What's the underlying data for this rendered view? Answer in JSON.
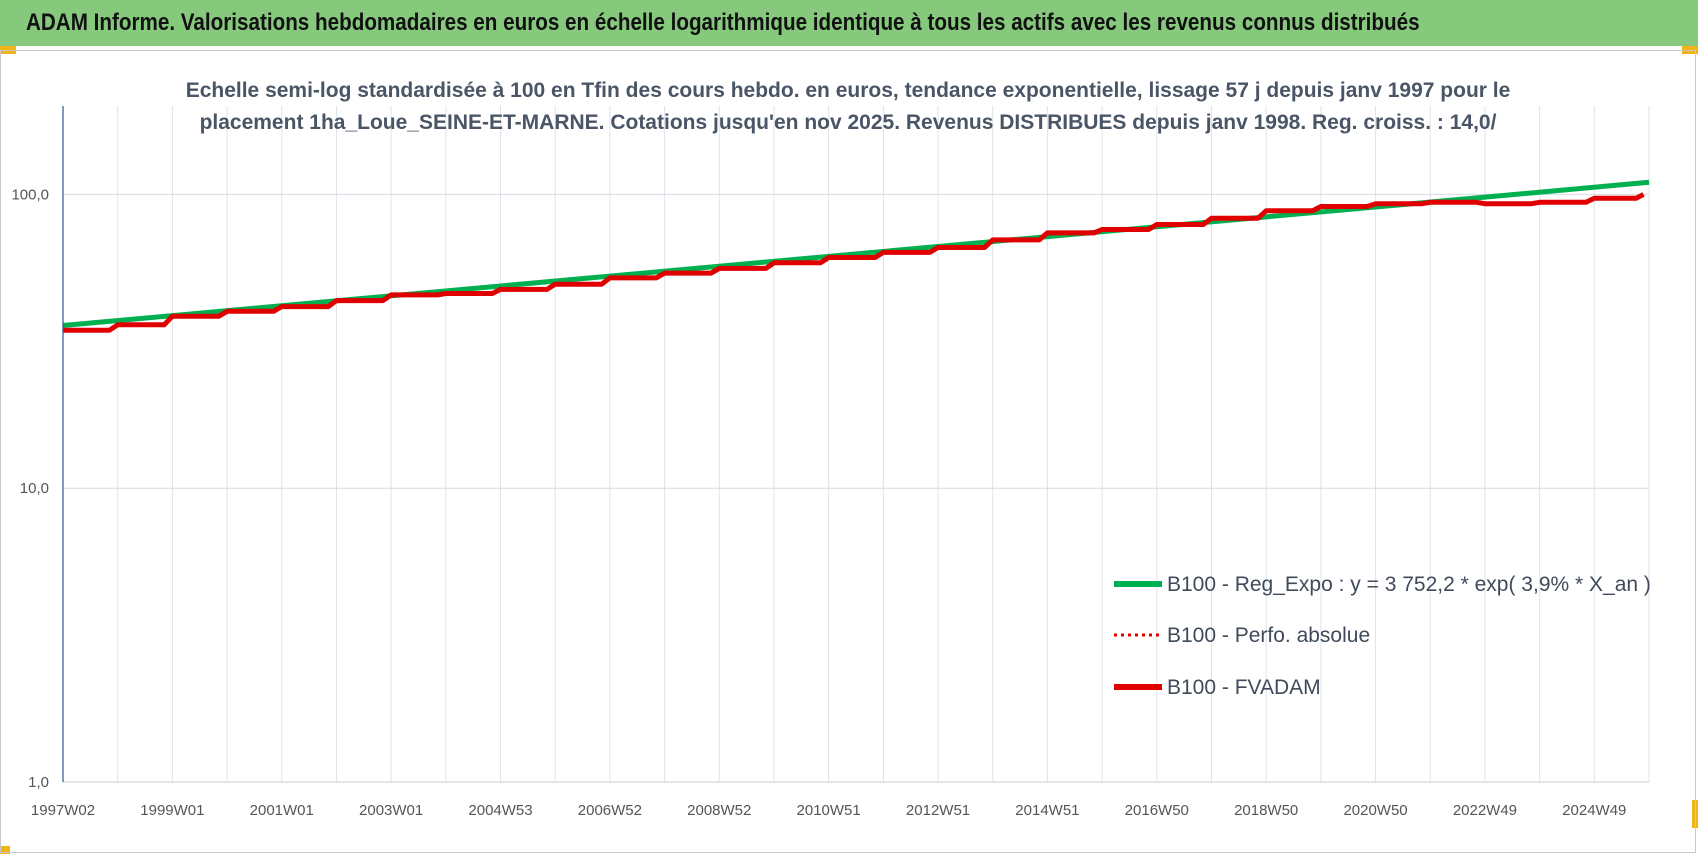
{
  "header": {
    "title": "ADAM Informe. Valorisations hebdomadaires en euros en échelle logarithmique identique à tous les actifs avec les revenus connus distribués"
  },
  "chart_data": {
    "type": "line",
    "subtitle_lines": [
      "Echelle semi-log standardisée à 100 en Tfin des cours hebdo. en euros, tendance exponentielle, lissage 57 j depuis janv 1997 pour le",
      "placement 1ha_Loue_SEINE-ET-MARNE. Cotations jusqu'en nov 2025. Revenus DISTRIBUES depuis janv 1998. Reg. croiss. : 14,0/"
    ],
    "y_scale": "log",
    "ylim": [
      1,
      200
    ],
    "y_ticks": [
      {
        "value": 1,
        "label": "1,0"
      },
      {
        "value": 10,
        "label": "10,0"
      },
      {
        "value": 100,
        "label": "100,0"
      }
    ],
    "x_range": [
      1997.0,
      2026.0
    ],
    "x_ticks": [
      {
        "value": 1997.0,
        "label": "1997W02"
      },
      {
        "value": 1999.0,
        "label": "1999W01"
      },
      {
        "value": 2001.0,
        "label": "2001W01"
      },
      {
        "value": 2003.0,
        "label": "2003W01"
      },
      {
        "value": 2005.0,
        "label": "2004W53"
      },
      {
        "value": 2007.0,
        "label": "2006W52"
      },
      {
        "value": 2009.0,
        "label": "2008W52"
      },
      {
        "value": 2011.0,
        "label": "2010W51"
      },
      {
        "value": 2013.0,
        "label": "2012W51"
      },
      {
        "value": 2015.0,
        "label": "2014W51"
      },
      {
        "value": 2017.0,
        "label": "2016W50"
      },
      {
        "value": 2019.0,
        "label": "2018W50"
      },
      {
        "value": 2021.0,
        "label": "2020W50"
      },
      {
        "value": 2023.0,
        "label": "2022W49"
      },
      {
        "value": 2025.0,
        "label": "2024W49"
      }
    ],
    "grid": true,
    "legend_position": "lower-right",
    "series": [
      {
        "name": "B100 - Reg_Expo : y = 3 752,2 * exp( 3,9% *  X_an )",
        "color": "#00b050",
        "style": "solid",
        "x": [
          1997.0,
          2026.0
        ],
        "y": [
          35.8,
          110.0
        ]
      },
      {
        "name": "B100 - Perfo. absolue",
        "color": "#e00000",
        "style": "dotted",
        "x": [
          1997.0,
          1998.0,
          1999.0,
          2000.0,
          2001.0,
          2002.0,
          2003.0,
          2004.0,
          2005.0,
          2006.0,
          2007.0,
          2008.0,
          2009.0,
          2010.0,
          2011.0,
          2012.0,
          2013.0,
          2014.0,
          2015.0,
          2016.0,
          2017.0,
          2018.0,
          2019.0,
          2020.0,
          2021.0,
          2022.0,
          2023.0,
          2024.0,
          2025.0,
          2025.9
        ],
        "y": [
          34.5,
          36.0,
          38.5,
          40.0,
          41.5,
          43.5,
          45.5,
          46.0,
          47.5,
          49.5,
          52.0,
          54.0,
          56.0,
          58.5,
          61.0,
          63.5,
          66.0,
          70.0,
          74.0,
          76.0,
          79.0,
          83.0,
          88.0,
          91.0,
          93.0,
          94.0,
          93.0,
          94.0,
          97.0,
          100.0
        ]
      },
      {
        "name": "B100 - FVADAM",
        "color": "#e00000",
        "style": "solid",
        "x": [
          1997.0,
          1998.0,
          1999.0,
          2000.0,
          2001.0,
          2002.0,
          2003.0,
          2004.0,
          2005.0,
          2006.0,
          2007.0,
          2008.0,
          2009.0,
          2010.0,
          2011.0,
          2012.0,
          2013.0,
          2014.0,
          2015.0,
          2016.0,
          2017.0,
          2018.0,
          2019.0,
          2020.0,
          2021.0,
          2022.0,
          2023.0,
          2024.0,
          2025.0,
          2025.9
        ],
        "y": [
          34.5,
          36.0,
          38.5,
          40.0,
          41.5,
          43.5,
          45.5,
          46.0,
          47.5,
          49.5,
          52.0,
          54.0,
          56.0,
          58.5,
          61.0,
          63.5,
          66.0,
          70.0,
          74.0,
          76.0,
          79.0,
          83.0,
          88.0,
          91.0,
          93.0,
          94.0,
          93.0,
          94.0,
          97.0,
          100.0
        ]
      }
    ]
  }
}
